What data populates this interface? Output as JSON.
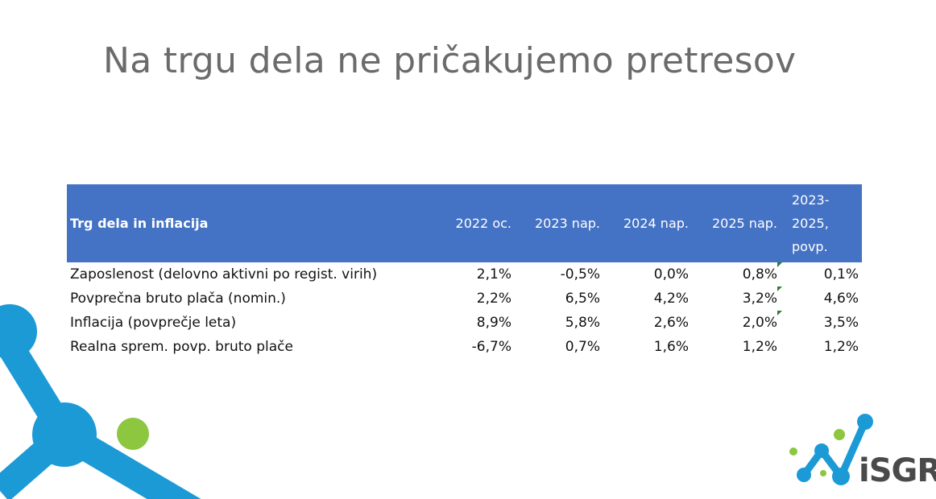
{
  "slide": {
    "title": "Na trgu dela ne pričakujemo pretresov",
    "colors": {
      "title": "#6b6b6b",
      "header_bg": "#4472c4",
      "header_text": "#ffffff",
      "accent_blue": "#1b9ad6",
      "accent_green": "#8dc63f",
      "comment_flag": "#2e7d32"
    }
  },
  "table": {
    "header": {
      "row_label": "Trg dela in inflacija",
      "columns": [
        "2022 oc.",
        "2023 nap.",
        "2024 nap.",
        "2025 nap."
      ],
      "last_column_lines": [
        "2023-",
        "2025,",
        "povp."
      ]
    },
    "rows": [
      {
        "label": "Zaposlenost (delovno aktivni po regist. virih)",
        "values": [
          "2,1%",
          "-0,5%",
          "0,0%",
          "0,8%",
          "0,1%"
        ]
      },
      {
        "label": "Povprečna bruto plača (nomin.)",
        "values": [
          "2,2%",
          "6,5%",
          "4,2%",
          "3,2%",
          "4,6%"
        ]
      },
      {
        "label": "Inflacija (povprečje leta)",
        "values": [
          "8,9%",
          "5,8%",
          "2,6%",
          "2,0%",
          "3,5%"
        ]
      },
      {
        "label": "Realna sprem. povp. bruto plače",
        "values": [
          "-6,7%",
          "0,7%",
          "1,6%",
          "1,2%",
          "1,2%"
        ]
      }
    ]
  },
  "logo": {
    "text": "iSGR"
  }
}
